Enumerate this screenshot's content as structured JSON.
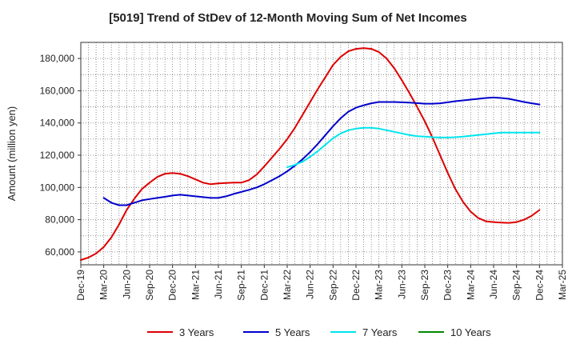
{
  "chart_data": {
    "type": "line",
    "title": "[5019]  Trend of StDev of 12-Month Moving Sum of Net Incomes",
    "xlabel": "",
    "ylabel": "Amount (million yen)",
    "ylim": [
      52000,
      190000
    ],
    "yticks": [
      60000,
      80000,
      100000,
      120000,
      140000,
      160000,
      180000
    ],
    "ytick_labels": [
      "60,000",
      "80,000",
      "100,000",
      "120,000",
      "140,000",
      "160,000",
      "180,000"
    ],
    "xtick_labels": [
      "Dec-19",
      "Mar-20",
      "Jun-20",
      "Sep-20",
      "Dec-20",
      "Mar-21",
      "Jun-21",
      "Sep-21",
      "Dec-21",
      "Mar-22",
      "Jun-22",
      "Sep-22",
      "Dec-22",
      "Mar-23",
      "Jun-23",
      "Sep-23",
      "Dec-23",
      "Mar-24",
      "Jun-24",
      "Sep-24",
      "Dec-24",
      "Mar-25"
    ],
    "grid": true,
    "legend_position": "bottom",
    "series": [
      {
        "name": "3 Years",
        "color": "#dd0000",
        "x": [
          "Dec-19",
          "Jan-20",
          "Feb-20",
          "Mar-20",
          "Apr-20",
          "May-20",
          "Jun-20",
          "Jul-20",
          "Aug-20",
          "Sep-20",
          "Oct-20",
          "Nov-20",
          "Dec-20",
          "Jan-21",
          "Feb-21",
          "Mar-21",
          "Apr-21",
          "May-21",
          "Jun-21",
          "Jul-21",
          "Aug-21",
          "Sep-21",
          "Oct-21",
          "Nov-21",
          "Dec-21",
          "Jan-22",
          "Feb-22",
          "Mar-22",
          "Apr-22",
          "May-22",
          "Jun-22",
          "Jul-22",
          "Aug-22",
          "Sep-22",
          "Oct-22",
          "Nov-22",
          "Dec-22",
          "Jan-23",
          "Feb-23",
          "Mar-23",
          "Apr-23",
          "May-23",
          "Jun-23",
          "Jul-23",
          "Aug-23",
          "Sep-23",
          "Oct-23",
          "Nov-23",
          "Dec-23",
          "Jan-24",
          "Feb-24",
          "Mar-24",
          "Apr-24",
          "May-24",
          "Jun-24",
          "Jul-24",
          "Aug-24",
          "Sep-24",
          "Oct-24",
          "Nov-24",
          "Dec-24"
        ],
        "values": [
          55000,
          56500,
          59000,
          63000,
          69000,
          77000,
          86000,
          93000,
          99000,
          103000,
          106500,
          108500,
          109000,
          108500,
          107000,
          105000,
          103000,
          102000,
          102500,
          102800,
          103000,
          103000,
          104500,
          108000,
          113000,
          118500,
          124000,
          130000,
          137000,
          145000,
          153000,
          161000,
          168500,
          176000,
          181000,
          184500,
          186000,
          186500,
          186000,
          184000,
          180000,
          174000,
          166500,
          158500,
          150000,
          141000,
          131000,
          120000,
          109000,
          99000,
          91000,
          85000,
          81000,
          79000,
          78500,
          78200,
          78000,
          78500,
          80000,
          82500,
          86000
        ]
      },
      {
        "name": "5 Years",
        "color": "#0000cc",
        "x": [
          "Mar-20",
          "Apr-20",
          "May-20",
          "Jun-20",
          "Jul-20",
          "Aug-20",
          "Sep-20",
          "Oct-20",
          "Nov-20",
          "Dec-20",
          "Jan-21",
          "Feb-21",
          "Mar-21",
          "Apr-21",
          "May-21",
          "Jun-21",
          "Jul-21",
          "Aug-21",
          "Sep-21",
          "Oct-21",
          "Nov-21",
          "Dec-21",
          "Jan-22",
          "Feb-22",
          "Mar-22",
          "Apr-22",
          "May-22",
          "Jun-22",
          "Jul-22",
          "Aug-22",
          "Sep-22",
          "Oct-22",
          "Nov-22",
          "Dec-22",
          "Jan-23",
          "Feb-23",
          "Mar-23",
          "Apr-23",
          "May-23",
          "Jun-23",
          "Jul-23",
          "Aug-23",
          "Sep-23",
          "Oct-23",
          "Nov-23",
          "Dec-23",
          "Jan-24",
          "Feb-24",
          "Mar-24",
          "Apr-24",
          "May-24",
          "Jun-24",
          "Jul-24",
          "Aug-24",
          "Sep-24",
          "Oct-24",
          "Nov-24",
          "Dec-24"
        ],
        "values": [
          93500,
          90500,
          89000,
          89000,
          90500,
          92000,
          92800,
          93500,
          94200,
          95000,
          95500,
          95000,
          94500,
          94000,
          93500,
          93500,
          94500,
          96000,
          97200,
          98500,
          100000,
          102000,
          104500,
          107000,
          110000,
          113500,
          117500,
          122000,
          127000,
          132500,
          138000,
          143000,
          147000,
          149500,
          151000,
          152200,
          153000,
          153000,
          153000,
          152800,
          152600,
          152300,
          152000,
          152000,
          152200,
          152800,
          153500,
          154000,
          154500,
          155000,
          155500,
          155800,
          155500,
          155000,
          154000,
          153000,
          152200,
          151500
        ]
      },
      {
        "name": "7 Years",
        "color": "#00e5ee",
        "x": [
          "Mar-22",
          "Apr-22",
          "May-22",
          "Jun-22",
          "Jul-22",
          "Aug-22",
          "Sep-22",
          "Oct-22",
          "Nov-22",
          "Dec-22",
          "Jan-23",
          "Feb-23",
          "Mar-23",
          "Apr-23",
          "May-23",
          "Jun-23",
          "Jul-23",
          "Aug-23",
          "Sep-23",
          "Oct-23",
          "Nov-23",
          "Dec-23",
          "Jan-24",
          "Feb-24",
          "Mar-24",
          "Apr-24",
          "May-24",
          "Jun-24",
          "Jul-24",
          "Aug-24",
          "Sep-24",
          "Oct-24",
          "Nov-24",
          "Dec-24"
        ],
        "values": [
          112500,
          114000,
          116000,
          119000,
          122500,
          126500,
          130500,
          133500,
          135500,
          136500,
          137000,
          137000,
          136500,
          135500,
          134500,
          133500,
          132500,
          131800,
          131500,
          131200,
          131000,
          131000,
          131200,
          131500,
          132000,
          132500,
          133000,
          133500,
          134000,
          134000,
          134000,
          134000,
          134000,
          134000
        ]
      },
      {
        "name": "10 Years",
        "color": "#008800",
        "x": [],
        "values": []
      }
    ]
  }
}
